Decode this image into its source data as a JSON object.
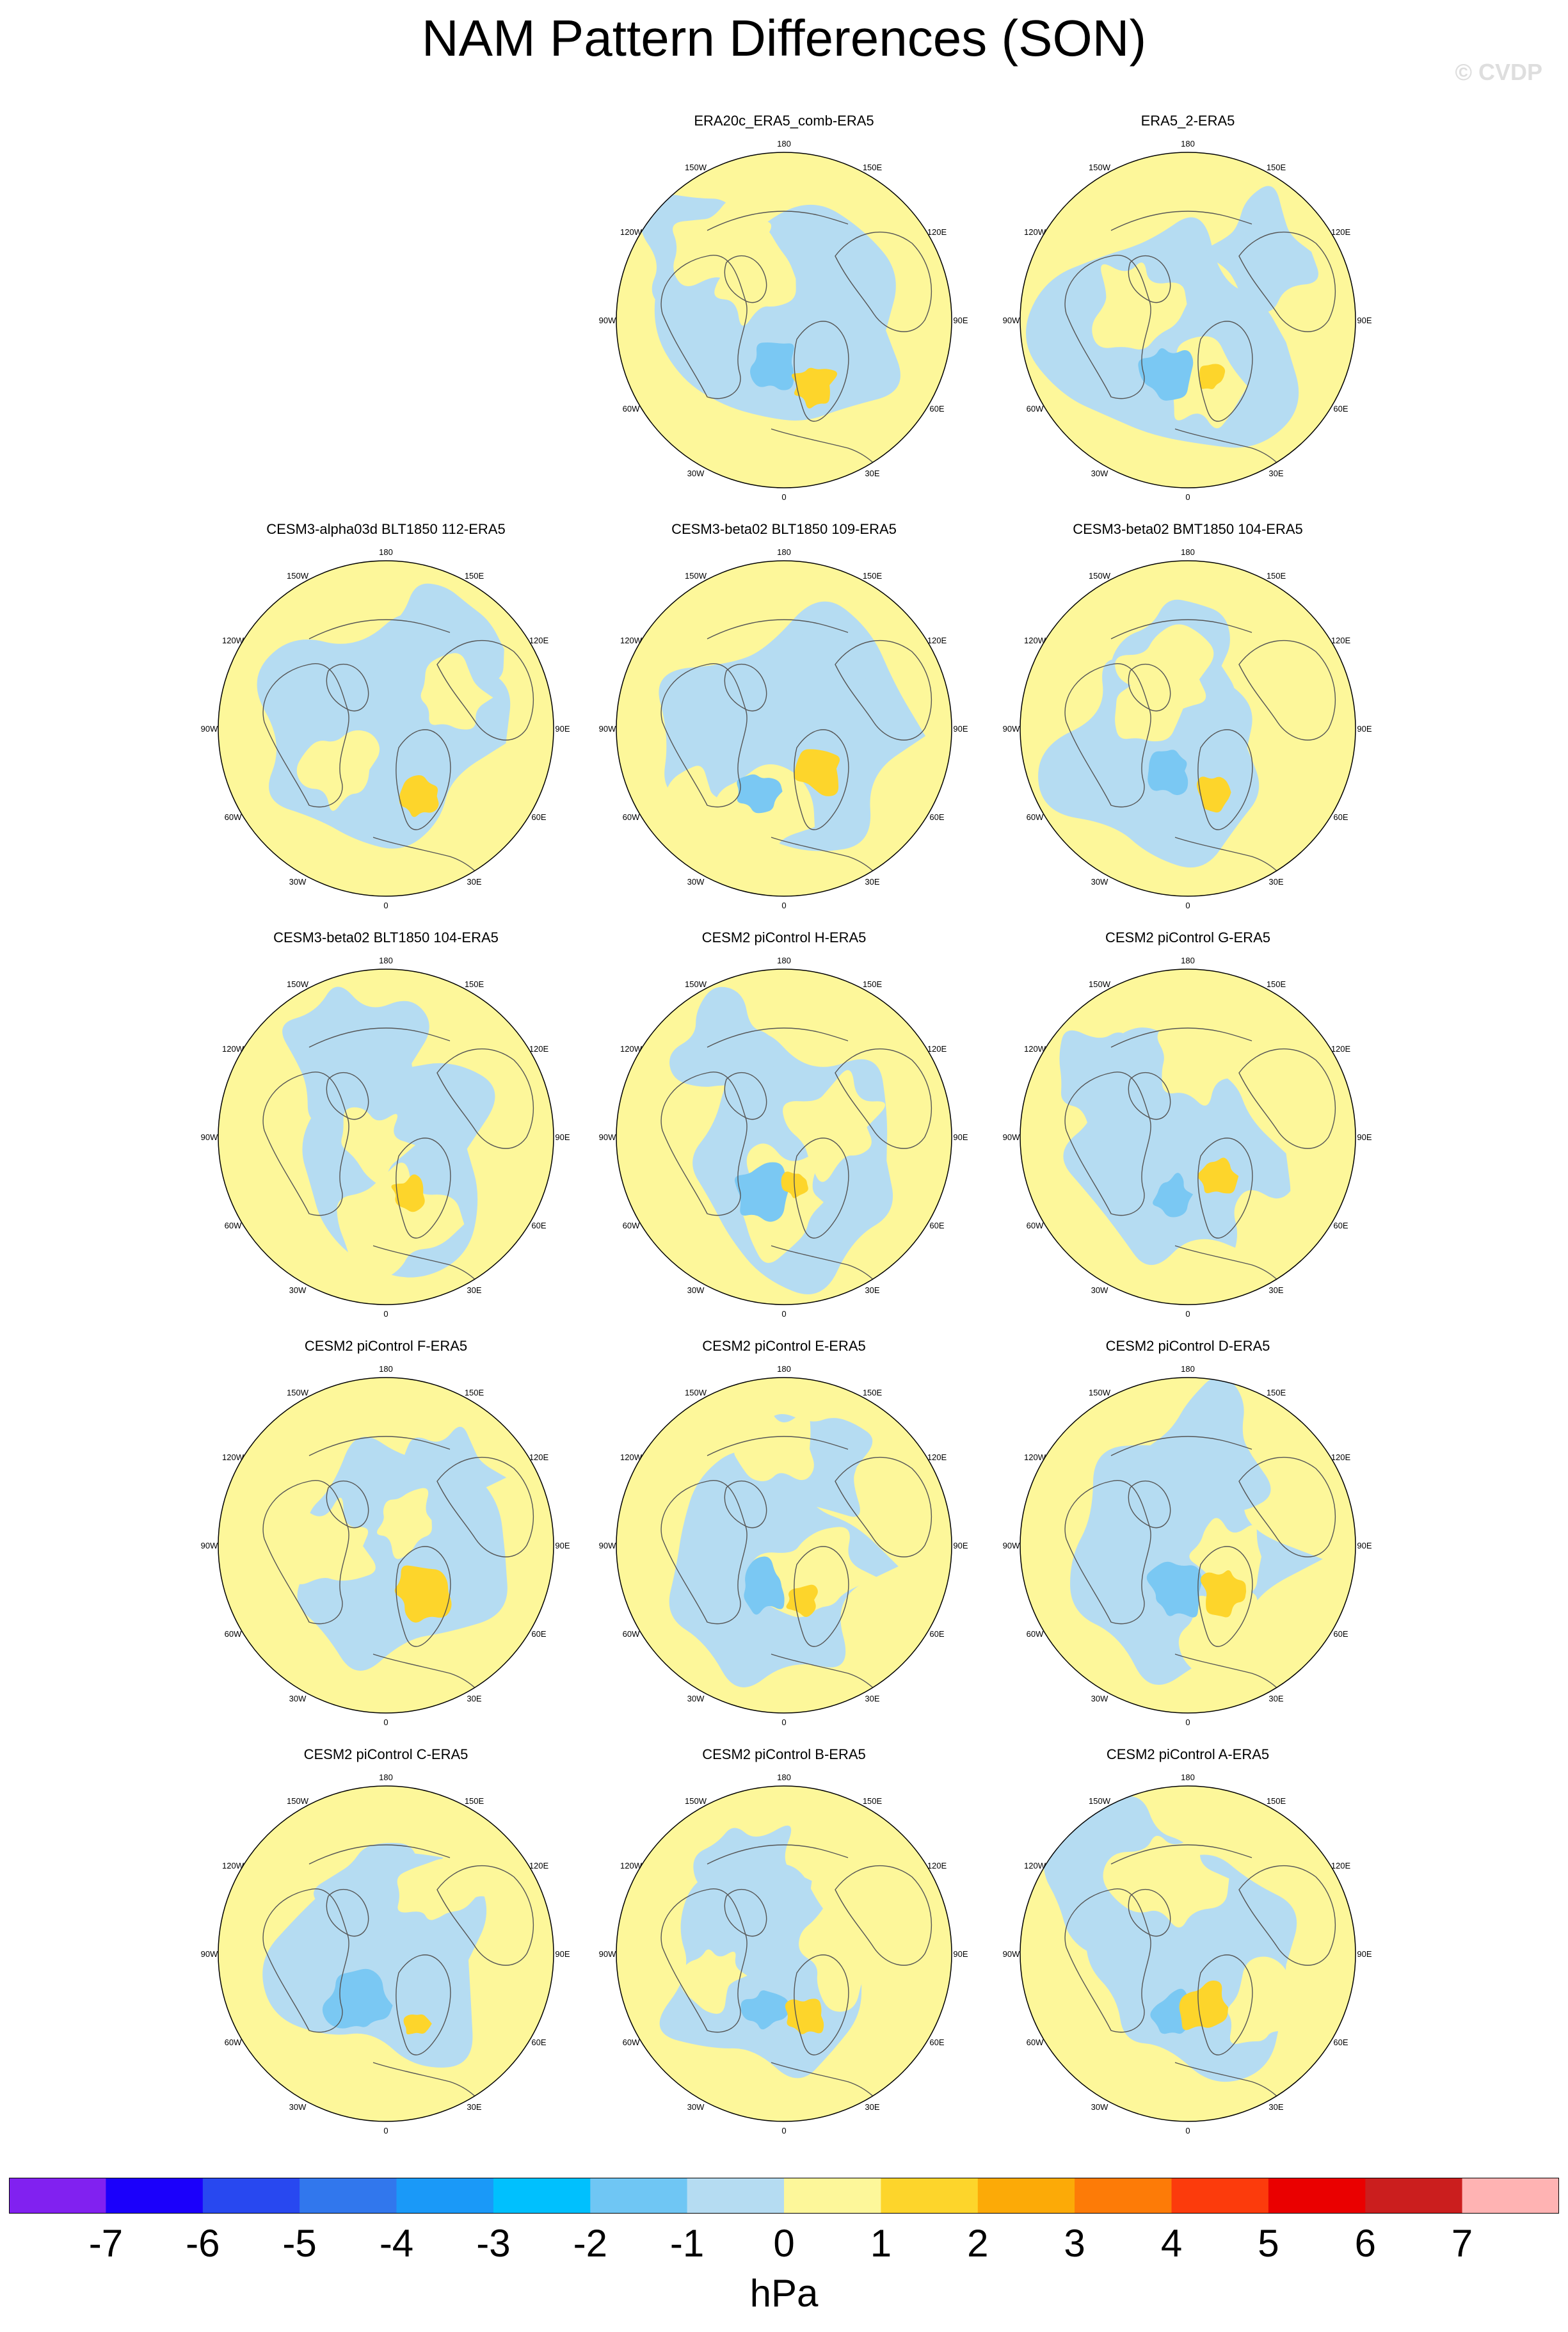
{
  "title": "NAM Pattern Differences (SON)",
  "watermark": "© CVDP",
  "longitude_labels": [
    "180",
    "150E",
    "120E",
    "90E",
    "60E",
    "30E",
    "0",
    "30W",
    "60W",
    "90W",
    "120W",
    "150W"
  ],
  "colors": {
    "neg_1": "#b5dcf2",
    "neg_2": "#7ac8f3",
    "neg_3": "#2fa2f5",
    "pos_1": "#fdf79a",
    "pos_2": "#fdd52b",
    "pos_3": "#fcaa07",
    "coast": "#555555"
  },
  "panels": [
    {
      "title": "ERA20c_ERA5_comb-ERA5",
      "empty": false
    },
    {
      "title": "ERA5_2-ERA5",
      "empty": false
    },
    {
      "title": "CESM3-alpha03d BLT1850 112-ERA5",
      "empty": false
    },
    {
      "title": "CESM3-beta02 BLT1850 109-ERA5",
      "empty": false
    },
    {
      "title": "CESM3-beta02 BMT1850 104-ERA5",
      "empty": false
    },
    {
      "title": "CESM3-beta02 BLT1850 104-ERA5",
      "empty": false
    },
    {
      "title": "CESM2 piControl H-ERA5",
      "empty": false
    },
    {
      "title": "CESM2 piControl G-ERA5",
      "empty": false
    },
    {
      "title": "CESM2 piControl F-ERA5",
      "empty": false
    },
    {
      "title": "CESM2 piControl E-ERA5",
      "empty": false
    },
    {
      "title": "CESM2 piControl D-ERA5",
      "empty": false
    },
    {
      "title": "CESM2 piControl C-ERA5",
      "empty": false
    },
    {
      "title": "CESM2 piControl B-ERA5",
      "empty": false
    },
    {
      "title": "CESM2 piControl A-ERA5",
      "empty": false
    }
  ],
  "colorbar": {
    "units": "hPa",
    "tick_labels": [
      "-7",
      "-6",
      "-5",
      "-4",
      "-3",
      "-2",
      "-1",
      "0",
      "1",
      "2",
      "3",
      "4",
      "5",
      "6",
      "7"
    ],
    "colors": [
      "#8121f0",
      "#1b00fb",
      "#2848f0",
      "#3177ed",
      "#1a99f8",
      "#00c0fe",
      "#6fc6f4",
      "#b5dcf2",
      "#fdf79a",
      "#fdd52b",
      "#fcaa07",
      "#fd7b07",
      "#fc3b0c",
      "#ea0000",
      "#cb1e1e",
      "#ffb3b3"
    ]
  }
}
